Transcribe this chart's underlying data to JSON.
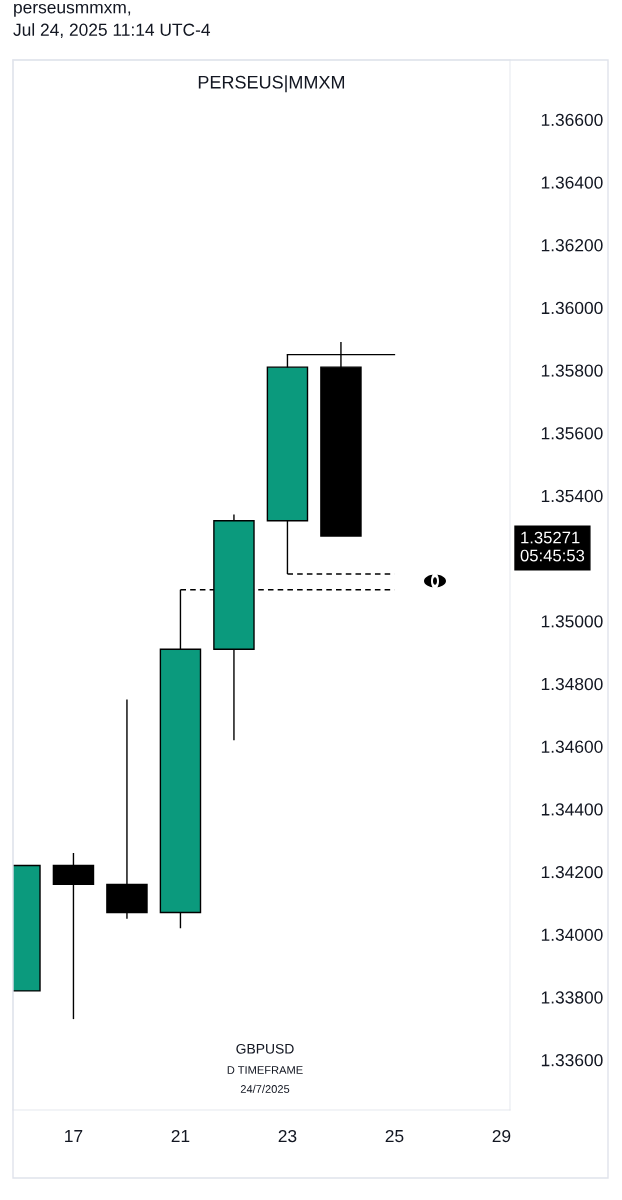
{
  "chart_data": {
    "type": "candlestick",
    "title": "PERSEUS|MMXM",
    "categories": [
      null,
      "17",
      null,
      "21",
      null,
      "23",
      null,
      "25",
      null,
      "29"
    ],
    "ohlc": [
      [
        1.3382,
        1.3422,
        1.3382,
        1.3422
      ],
      [
        1.3422,
        1.3426,
        1.3373,
        1.3416
      ],
      [
        1.3416,
        1.3475,
        1.3405,
        1.3407
      ],
      [
        1.3407,
        1.351,
        1.3402,
        1.3491
      ],
      [
        1.3491,
        1.3534,
        1.3462,
        1.3532
      ],
      [
        1.3532,
        1.3585,
        1.3515,
        1.3581
      ],
      [
        1.3581,
        1.3589,
        1.35271,
        1.35271
      ],
      null,
      null,
      null
    ],
    "colors": [
      "#0b9a7d",
      "#000000",
      "#000000",
      "#0b9a7d",
      "#0b9a7d",
      "#0b9a7d",
      "#000000",
      null,
      null,
      null
    ],
    "series": [
      {
        "type": "line",
        "x": [
          "23",
          "25"
        ],
        "values": [
          1.3585,
          1.3585
        ],
        "color": "#000000",
        "line_style": "solid"
      },
      {
        "type": "line",
        "x": [
          "23",
          "25"
        ],
        "values": [
          1.3515,
          1.3515
        ],
        "color": "#000000",
        "line_style": "dashed"
      },
      {
        "type": "line",
        "x": [
          "21",
          "25"
        ],
        "values": [
          1.351,
          1.351
        ],
        "color": "#000000",
        "line_style": "dashed"
      }
    ],
    "ylim": [
      1.3344,
      1.3679
    ],
    "yticks": [
      {
        "value": 1.336,
        "label": "1.33600"
      },
      {
        "value": 1.338,
        "label": "1.33800"
      },
      {
        "value": 1.34,
        "label": "1.34000"
      },
      {
        "value": 1.342,
        "label": "1.34200"
      },
      {
        "value": 1.344,
        "label": "1.34400"
      },
      {
        "value": 1.346,
        "label": "1.34600"
      },
      {
        "value": 1.348,
        "label": "1.34800"
      },
      {
        "value": 1.35,
        "label": "1.35000"
      },
      {
        "value": 1.354,
        "label": "1.35400"
      },
      {
        "value": 1.356,
        "label": "1.35600"
      },
      {
        "value": 1.358,
        "label": "1.35800"
      },
      {
        "value": 1.36,
        "label": "1.36000"
      },
      {
        "value": 1.362,
        "label": "1.36200"
      },
      {
        "value": 1.364,
        "label": "1.36400"
      },
      {
        "value": 1.366,
        "label": "1.36600"
      }
    ],
    "grid": false,
    "legend": false,
    "annotations": [
      "1.35271\n05:45:53",
      "GBPUSD",
      "D TIMEFRAME",
      "24/7/2025",
      "perseusmmxm,\nJul 24, 2025 11:14 UTC-4"
    ]
  }
}
